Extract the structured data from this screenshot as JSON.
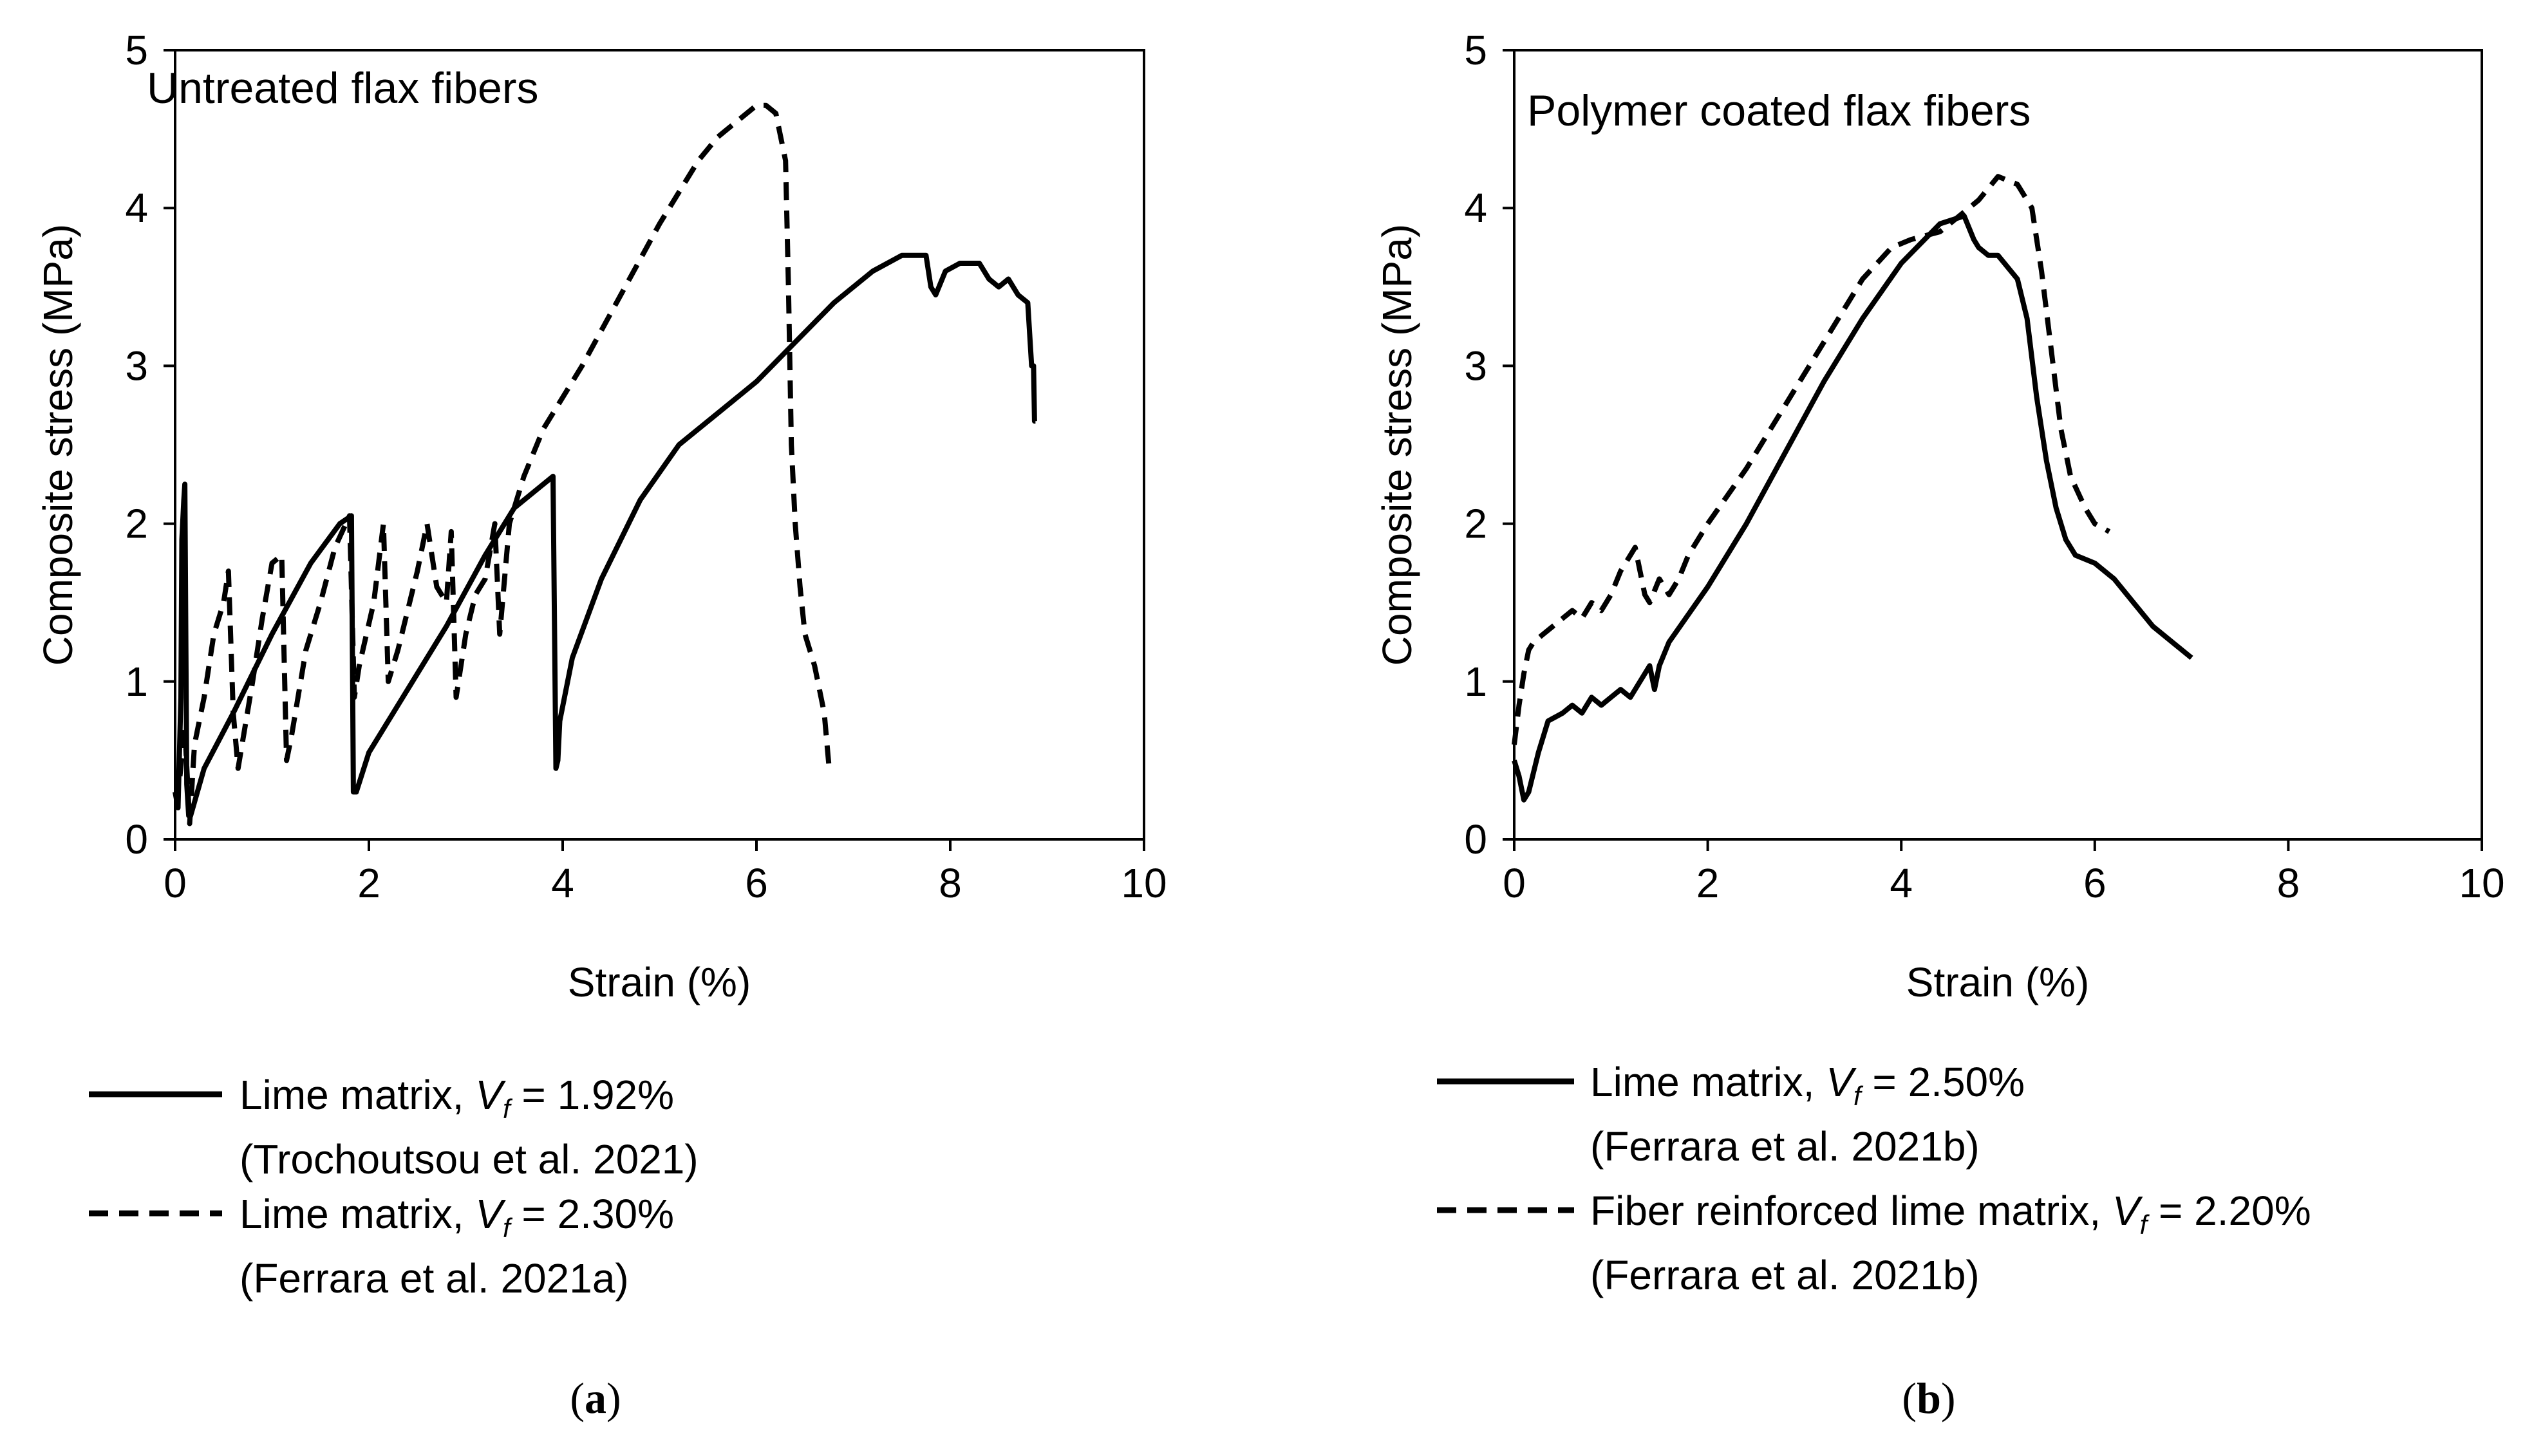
{
  "panels": [
    {
      "caption_letter": "a",
      "chart_data": {
        "type": "line",
        "title": "Untreated flax fibers",
        "xlabel": "Strain (%)",
        "ylabel": "Composite stress (MPa)",
        "xlim": [
          0,
          10
        ],
        "ylim": [
          0,
          5
        ],
        "xticks": [
          0,
          2,
          4,
          6,
          8,
          10
        ],
        "yticks": [
          0,
          1,
          2,
          3,
          4,
          5
        ],
        "grid": false,
        "series": [
          {
            "name": "Lime matrix, Vf = 1.92%",
            "legend_prefix": "Lime matrix, ",
            "legend_var": "V",
            "legend_sub": "f",
            "legend_value": " = 1.92%",
            "legend_source": "(Trochoutsou et al. 2021)",
            "style": "solid",
            "x": [
              0,
              0.03,
              0.06,
              0.07,
              0.09,
              0.1,
              0.12,
              0.13,
              0.14,
              0.16,
              0.3,
              0.6,
              1.0,
              1.4,
              1.7,
              1.82,
              1.84,
              1.87,
              2.0,
              2.4,
              2.8,
              3.2,
              3.5,
              3.9,
              3.93,
              3.95,
              3.97,
              4.1,
              4.4,
              4.8,
              5.2,
              5.6,
              6.0,
              6.4,
              6.8,
              7.2,
              7.5,
              7.75,
              7.8,
              7.85,
              7.95,
              8.1,
              8.3,
              8.4,
              8.5,
              8.6,
              8.7,
              8.8,
              8.84,
              8.86,
              8.87,
              8.88
            ],
            "y": [
              0.3,
              0.2,
              0.9,
              1.9,
              2.15,
              2.25,
              0.35,
              0.25,
              0.15,
              0.15,
              0.45,
              0.8,
              1.3,
              1.75,
              2.0,
              2.05,
              0.3,
              0.3,
              0.55,
              0.95,
              1.35,
              1.8,
              2.1,
              2.3,
              0.45,
              0.5,
              0.75,
              1.15,
              1.65,
              2.15,
              2.5,
              2.7,
              2.9,
              3.15,
              3.4,
              3.6,
              3.7,
              3.7,
              3.5,
              3.45,
              3.6,
              3.65,
              3.65,
              3.55,
              3.5,
              3.55,
              3.45,
              3.4,
              3.0,
              3.0,
              2.65,
              2.65
            ]
          },
          {
            "name": "Lime matrix, Vf = 2.30%",
            "legend_prefix": "Lime matrix, ",
            "legend_var": "V",
            "legend_sub": "f",
            "legend_value": " = 2.30%",
            "legend_source": "(Ferrara et al. 2021a)",
            "style": "dashed",
            "x": [
              0.05,
              0.1,
              0.15,
              0.2,
              0.3,
              0.4,
              0.5,
              0.55,
              0.6,
              0.65,
              0.8,
              0.9,
              1.0,
              1.1,
              1.15,
              1.2,
              1.35,
              1.5,
              1.65,
              1.8,
              1.85,
              1.9,
              2.05,
              2.15,
              2.2,
              2.3,
              2.5,
              2.6,
              2.7,
              2.8,
              2.85,
              2.9,
              3.0,
              3.1,
              3.2,
              3.3,
              3.35,
              3.45,
              3.6,
              3.8,
              4.2,
              4.6,
              5.0,
              5.4,
              5.6,
              5.8,
              6.0,
              6.1,
              6.2,
              6.3,
              6.33,
              6.36,
              6.4,
              6.45,
              6.5,
              6.6,
              6.7,
              6.75
            ],
            "y": [
              0.4,
              0.7,
              0.1,
              0.6,
              0.9,
              1.3,
              1.5,
              1.7,
              0.8,
              0.45,
              1.0,
              1.4,
              1.75,
              1.8,
              0.5,
              0.65,
              1.2,
              1.5,
              1.85,
              2.05,
              0.9,
              1.1,
              1.5,
              2.0,
              1.0,
              1.2,
              1.7,
              2.0,
              1.6,
              1.5,
              1.95,
              0.9,
              1.3,
              1.55,
              1.65,
              2.0,
              1.3,
              2.0,
              2.3,
              2.6,
              3.0,
              3.45,
              3.9,
              4.3,
              4.45,
              4.55,
              4.65,
              4.65,
              4.6,
              4.3,
              3.5,
              2.5,
              2.0,
              1.6,
              1.3,
              1.1,
              0.8,
              0.45
            ]
          }
        ]
      }
    },
    {
      "caption_letter": "b",
      "chart_data": {
        "type": "line",
        "title": "Polymer coated flax fibers",
        "xlabel": "Strain (%)",
        "ylabel": "Composite stress (MPa)",
        "xlim": [
          0,
          10
        ],
        "ylim": [
          0,
          5
        ],
        "xticks": [
          0,
          2,
          4,
          6,
          8,
          10
        ],
        "yticks": [
          0,
          1,
          2,
          3,
          4,
          5
        ],
        "grid": false,
        "series": [
          {
            "name": "Lime matrix, Vf = 2.50%",
            "legend_prefix": "Lime matrix, ",
            "legend_var": "V",
            "legend_sub": "f",
            "legend_value": " = 2.50%",
            "legend_source": "(Ferrara et al. 2021b)",
            "style": "solid",
            "x": [
              0,
              0.05,
              0.1,
              0.15,
              0.25,
              0.35,
              0.5,
              0.6,
              0.7,
              0.8,
              0.9,
              1.0,
              1.1,
              1.2,
              1.3,
              1.4,
              1.45,
              1.5,
              1.6,
              2.0,
              2.4,
              2.8,
              3.2,
              3.6,
              4.0,
              4.4,
              4.65,
              4.75,
              4.8,
              4.9,
              5.0,
              5.2,
              5.3,
              5.4,
              5.5,
              5.6,
              5.7,
              5.8,
              6.0,
              6.2,
              6.4,
              6.6,
              6.8,
              7.0
            ],
            "y": [
              0.5,
              0.4,
              0.25,
              0.3,
              0.55,
              0.75,
              0.8,
              0.85,
              0.8,
              0.9,
              0.85,
              0.9,
              0.95,
              0.9,
              1.0,
              1.1,
              0.95,
              1.1,
              1.25,
              1.6,
              2.0,
              2.45,
              2.9,
              3.3,
              3.65,
              3.9,
              3.95,
              3.8,
              3.75,
              3.7,
              3.7,
              3.55,
              3.3,
              2.8,
              2.4,
              2.1,
              1.9,
              1.8,
              1.75,
              1.65,
              1.5,
              1.35,
              1.25,
              1.15
            ]
          },
          {
            "name": "Fiber reinforced lime matrix, Vf = 2.20%",
            "legend_prefix": "Fiber reinforced lime matrix, ",
            "legend_var": "V",
            "legend_sub": "f",
            "legend_value": " = 2.20%",
            "legend_source": "(Ferrara et al. 2021b)",
            "style": "dashed",
            "x": [
              0,
              0.05,
              0.1,
              0.15,
              0.2,
              0.3,
              0.4,
              0.5,
              0.6,
              0.7,
              0.8,
              0.9,
              1.0,
              1.1,
              1.2,
              1.25,
              1.3,
              1.35,
              1.4,
              1.5,
              1.6,
              1.7,
              1.8,
              2.0,
              2.4,
              2.8,
              3.2,
              3.6,
              3.9,
              4.1,
              4.4,
              4.6,
              4.8,
              5.0,
              5.2,
              5.35,
              5.45,
              5.55,
              5.65,
              5.75,
              5.9,
              6.0,
              6.15
            ],
            "y": [
              0.6,
              0.85,
              1.05,
              1.2,
              1.25,
              1.3,
              1.35,
              1.4,
              1.45,
              1.4,
              1.5,
              1.45,
              1.55,
              1.7,
              1.8,
              1.85,
              1.7,
              1.55,
              1.5,
              1.65,
              1.55,
              1.65,
              1.8,
              2.0,
              2.35,
              2.75,
              3.15,
              3.55,
              3.75,
              3.8,
              3.85,
              3.95,
              4.05,
              4.2,
              4.15,
              4.0,
              3.6,
              3.1,
              2.6,
              2.3,
              2.1,
              2.0,
              1.95
            ]
          }
        ]
      }
    }
  ]
}
